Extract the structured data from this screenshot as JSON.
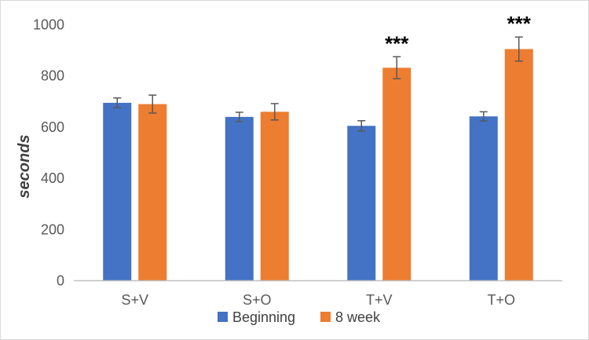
{
  "chart_data": {
    "type": "bar",
    "title": "",
    "xlabel": "",
    "ylabel": "seconds",
    "ylim": [
      0,
      1000
    ],
    "yticks": [
      0,
      200,
      400,
      600,
      800,
      1000
    ],
    "grid": false,
    "legend_position": "bottom",
    "categories": [
      "S+V",
      "S+O",
      "T+V",
      "T+O"
    ],
    "series": [
      {
        "name": "Beginning",
        "color": "#4472c4",
        "values": [
          695,
          640,
          605,
          642
        ],
        "errors": [
          19,
          18,
          20,
          18
        ]
      },
      {
        "name": "8 week",
        "color": "#ed7d31",
        "values": [
          690,
          660,
          832,
          905
        ],
        "errors": [
          35,
          32,
          43,
          47
        ]
      }
    ],
    "annotations": [
      {
        "category": "T+V",
        "series": "8 week",
        "text": "***"
      },
      {
        "category": "T+O",
        "series": "8 week",
        "text": "***"
      }
    ]
  }
}
